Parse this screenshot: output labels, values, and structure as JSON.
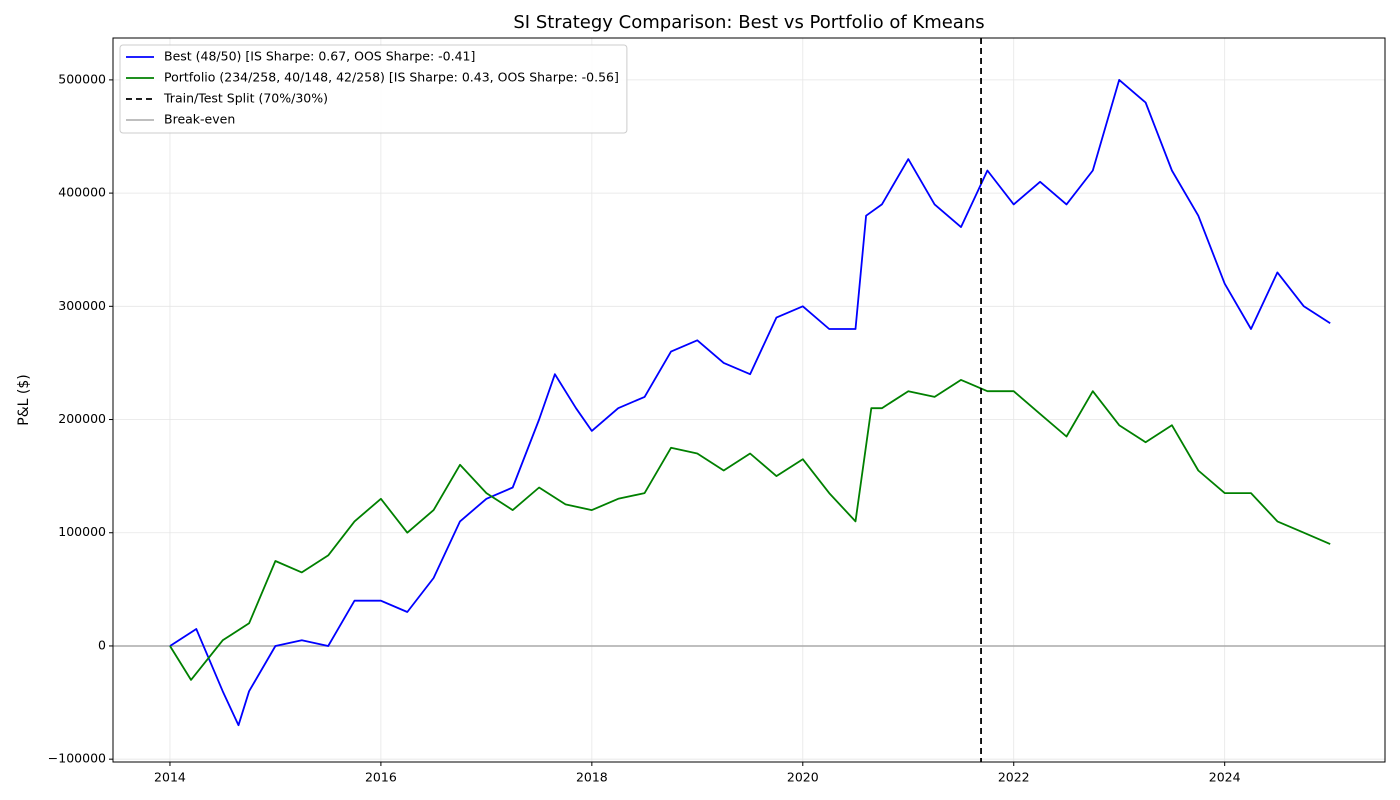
{
  "chart_data": {
    "type": "line",
    "title": "SI Strategy Comparison: Best vs Portfolio of Kmeans",
    "y_label": "P&L ($)",
    "xlim": [
      2013.46,
      2025.52
    ],
    "ylim": [
      -102500,
      537000
    ],
    "xticks": [
      2014,
      2016,
      2018,
      2020,
      2022,
      2024
    ],
    "yticks": [
      {
        "value": -100000,
        "label": "−100000"
      },
      0,
      100000,
      200000,
      300000,
      400000,
      500000
    ],
    "grid": true,
    "legend": "upper left",
    "series": [
      {
        "name": "Best (48/50) [IS Sharpe: 0.67, OOS Sharpe: -0.41]",
        "color": "#0000ff",
        "x": [
          2014.0,
          2014.25,
          2014.5,
          2014.65,
          2014.75,
          2015.0,
          2015.25,
          2015.5,
          2015.75,
          2016.0,
          2016.25,
          2016.5,
          2016.75,
          2017.0,
          2017.25,
          2017.5,
          2017.65,
          2017.85,
          2018.0,
          2018.25,
          2018.5,
          2018.75,
          2019.0,
          2019.25,
          2019.5,
          2019.75,
          2020.0,
          2020.25,
          2020.5,
          2020.6,
          2020.75,
          2021.0,
          2021.25,
          2021.5,
          2021.75,
          2022.0,
          2022.25,
          2022.5,
          2022.75,
          2023.0,
          2023.25,
          2023.5,
          2023.75,
          2024.0,
          2024.25,
          2024.5,
          2024.75,
          2025.0
        ],
        "values": [
          0,
          15000,
          -40000,
          -70000,
          -40000,
          0,
          5000,
          0,
          40000,
          40000,
          30000,
          60000,
          110000,
          130000,
          140000,
          200000,
          240000,
          210000,
          190000,
          210000,
          220000,
          260000,
          270000,
          250000,
          240000,
          290000,
          300000,
          280000,
          280000,
          380000,
          390000,
          430000,
          390000,
          370000,
          420000,
          390000,
          410000,
          390000,
          420000,
          500000,
          480000,
          420000,
          380000,
          320000,
          280000,
          330000,
          300000,
          285000
        ]
      },
      {
        "name": "Portfolio (234/258, 40/148, 42/258) [IS Sharpe: 0.43, OOS Sharpe: -0.56]",
        "color": "#008000",
        "x": [
          2014.0,
          2014.2,
          2014.5,
          2014.75,
          2015.0,
          2015.25,
          2015.5,
          2015.75,
          2016.0,
          2016.25,
          2016.5,
          2016.75,
          2017.0,
          2017.25,
          2017.5,
          2017.75,
          2018.0,
          2018.25,
          2018.5,
          2018.75,
          2019.0,
          2019.25,
          2019.5,
          2019.75,
          2020.0,
          2020.25,
          2020.5,
          2020.65,
          2020.75,
          2021.0,
          2021.25,
          2021.5,
          2021.75,
          2022.0,
          2022.25,
          2022.5,
          2022.75,
          2023.0,
          2023.25,
          2023.5,
          2023.75,
          2024.0,
          2024.25,
          2024.5,
          2024.75,
          2025.0
        ],
        "values": [
          0,
          -30000,
          5000,
          20000,
          75000,
          65000,
          80000,
          110000,
          130000,
          100000,
          120000,
          160000,
          135000,
          120000,
          140000,
          125000,
          120000,
          130000,
          135000,
          175000,
          170000,
          155000,
          170000,
          150000,
          165000,
          135000,
          110000,
          210000,
          210000,
          225000,
          220000,
          235000,
          225000,
          225000,
          205000,
          185000,
          225000,
          195000,
          180000,
          195000,
          155000,
          135000,
          135000,
          110000,
          100000,
          90000
        ]
      }
    ],
    "reference_lines": [
      {
        "name": "Train/Test Split (70%/30%)",
        "axis": "x",
        "value": 2021.69,
        "color": "#000000",
        "style": "dashed"
      },
      {
        "name": "Break-even",
        "axis": "y",
        "value": 0,
        "color": "#aaaaaa",
        "style": "solid"
      }
    ]
  }
}
